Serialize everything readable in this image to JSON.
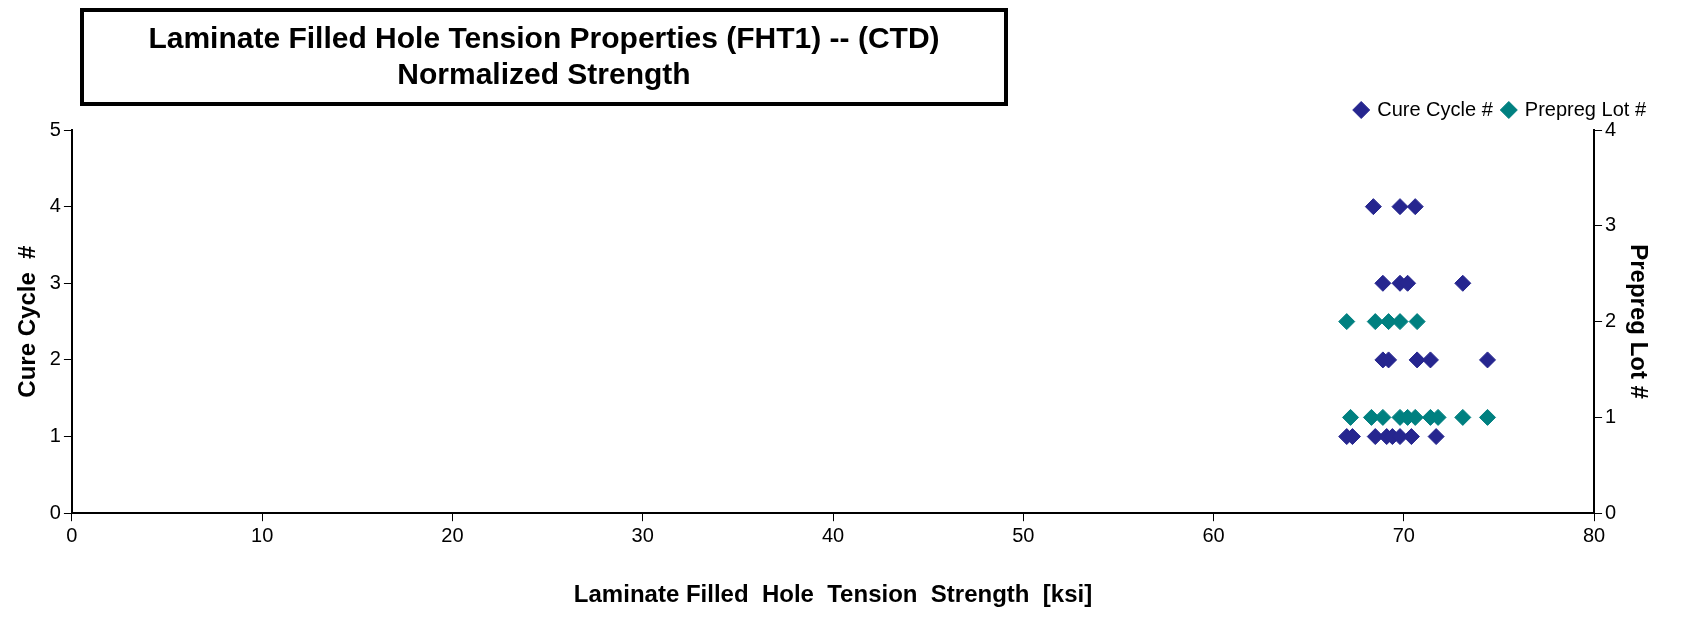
{
  "chart_data": {
    "type": "scatter",
    "title": "Laminate Filled Hole Tension Properties (FHT1) -- (CTD)",
    "subtitle": "Normalized Strength",
    "xlabel": "Laminate Filled  Hole  Tension  Strength  [ksi]",
    "ylabel": "Cure Cycle  #",
    "y2label": "Prepreg Lot #",
    "xlim": [
      0,
      80
    ],
    "xticks": [
      0,
      10,
      20,
      30,
      40,
      50,
      60,
      70,
      80
    ],
    "ylim": [
      0,
      5
    ],
    "yticks": [
      0,
      1,
      2,
      3,
      4,
      5
    ],
    "y2lim": [
      0,
      4
    ],
    "y2ticks": [
      0,
      1,
      2,
      3,
      4
    ],
    "grid": false,
    "legend": "top right",
    "marker": "diamond",
    "series": [
      {
        "name": "Cure Cycle #",
        "color": "#26268f",
        "x": [
          68.4,
          69.8,
          70.6,
          68.9,
          69.8,
          70.2,
          73.1,
          68.9,
          69.2,
          70.7,
          71.4,
          74.4,
          67.0,
          67.3,
          68.5,
          69.1,
          69.4,
          69.8,
          70.4,
          71.7
        ],
        "values": [
          4,
          4,
          4,
          3,
          3,
          3,
          3,
          2,
          2,
          2,
          2,
          2,
          1,
          1,
          1,
          1,
          1,
          1,
          1,
          1
        ]
      },
      {
        "name": "Prepreg Lot #",
        "color": "#008080",
        "axis": "y2",
        "x": [
          67.0,
          68.5,
          69.0,
          69.2,
          69.8,
          70.7,
          67.2,
          68.3,
          68.9,
          69.8,
          70.2,
          70.6,
          71.4,
          71.8,
          73.1,
          74.4
        ],
        "values": [
          2,
          2,
          null,
          2,
          2,
          2,
          1,
          1,
          1,
          1,
          1,
          1,
          1,
          1,
          1,
          1
        ]
      }
    ]
  }
}
